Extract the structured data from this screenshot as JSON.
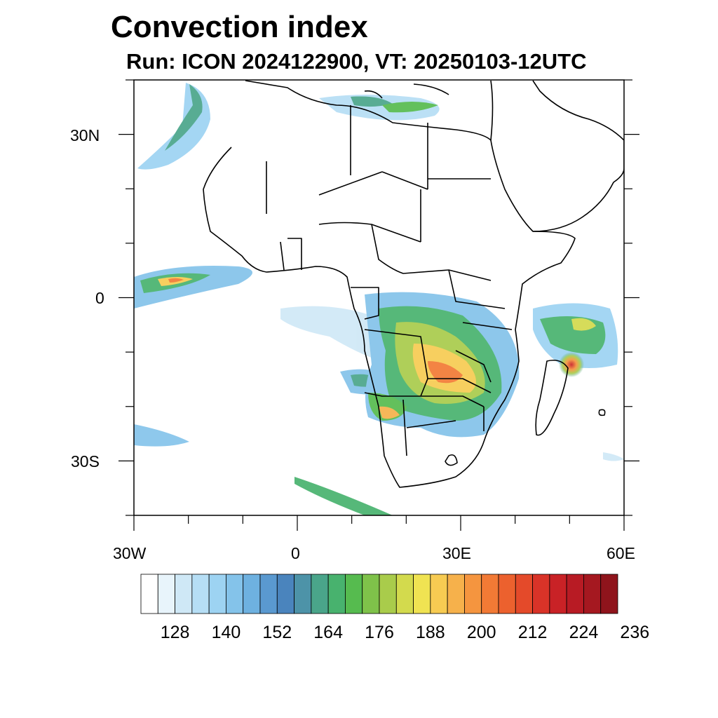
{
  "title": "Convection index",
  "subtitle": "Run: ICON 2024122900,  VT: 20250103-12UTC",
  "map": {
    "lon_range": [
      -30,
      60
    ],
    "lat_range": [
      -40,
      40
    ],
    "lat_tick_labels": [
      "30N",
      "0",
      "30S"
    ],
    "lon_tick_labels": [
      "30W",
      "0",
      "30E",
      "60E"
    ]
  },
  "colorbar": {
    "colors": [
      "#ffffff",
      "#e8f4fb",
      "#cfe8f6",
      "#b6def5",
      "#9dd3f2",
      "#84c3ea",
      "#6eb1e0",
      "#5a99d0",
      "#4a84bd",
      "#4d93a8",
      "#4aa58a",
      "#48b26e",
      "#56bb4f",
      "#7fc24a",
      "#a9cc4b",
      "#d3da4d",
      "#f0e352",
      "#f7cb52",
      "#f6b14b",
      "#f5953f",
      "#f27a35",
      "#ec612e",
      "#e44a2a",
      "#d93328",
      "#c92226",
      "#b81b24",
      "#a51820",
      "#8f141c"
    ],
    "labels": [
      "128",
      "140",
      "152",
      "164",
      "176",
      "188",
      "200",
      "212",
      "224",
      "236"
    ]
  }
}
